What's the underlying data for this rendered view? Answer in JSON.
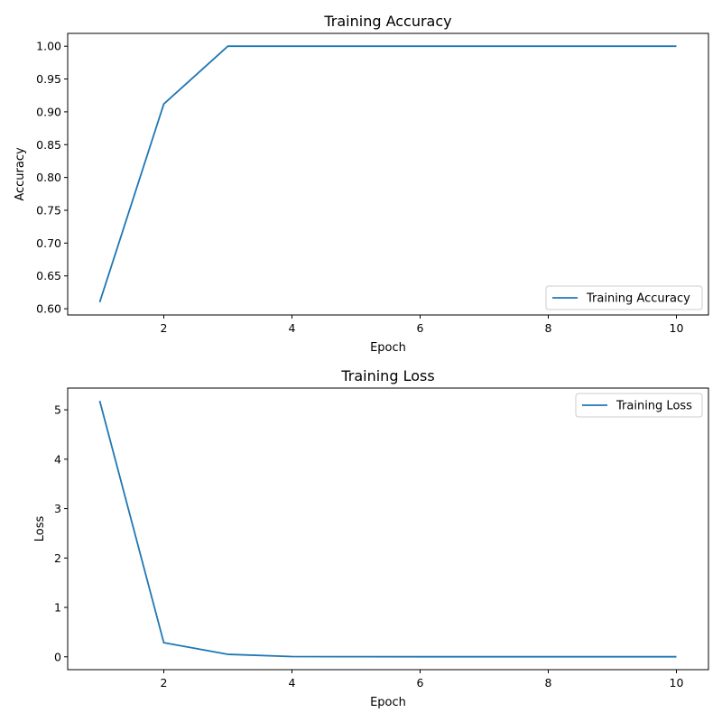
{
  "chart_data": [
    {
      "type": "line",
      "title": "Training Accuracy",
      "xlabel": "Epoch",
      "ylabel": "Accuracy",
      "xlim": [
        0.5,
        10.5
      ],
      "ylim": [
        0.5905,
        1.0195
      ],
      "xticks": [
        2,
        4,
        6,
        8,
        10
      ],
      "xtick_labels": [
        "2",
        "4",
        "6",
        "8",
        "10"
      ],
      "yticks": [
        0.6,
        0.65,
        0.7,
        0.75,
        0.8,
        0.85,
        0.9,
        0.95,
        1.0
      ],
      "ytick_labels": [
        "0.60",
        "0.65",
        "0.70",
        "0.75",
        "0.80",
        "0.85",
        "0.90",
        "0.95",
        "1.00"
      ],
      "grid": false,
      "legend_position": "bottom-right",
      "color": "#1f77b4",
      "series": [
        {
          "name": "Training Accuracy",
          "x": [
            1,
            2,
            3,
            4,
            5,
            6,
            7,
            8,
            9,
            10
          ],
          "values": [
            0.61,
            0.912,
            1.0,
            1.0,
            1.0,
            1.0,
            1.0,
            1.0,
            1.0,
            1.0
          ]
        }
      ]
    },
    {
      "type": "line",
      "title": "Training Loss",
      "xlabel": "Epoch",
      "ylabel": "Loss",
      "xlim": [
        0.5,
        10.5
      ],
      "ylim": [
        -0.26,
        5.44
      ],
      "xticks": [
        2,
        4,
        6,
        8,
        10
      ],
      "xtick_labels": [
        "2",
        "4",
        "6",
        "8",
        "10"
      ],
      "yticks": [
        0,
        1,
        2,
        3,
        4,
        5
      ],
      "ytick_labels": [
        "0",
        "1",
        "2",
        "3",
        "4",
        "5"
      ],
      "grid": false,
      "legend_position": "top-right",
      "color": "#1f77b4",
      "series": [
        {
          "name": "Training Loss",
          "x": [
            1,
            2,
            3,
            4,
            5,
            6,
            7,
            8,
            9,
            10
          ],
          "values": [
            5.18,
            0.285,
            0.05,
            0.005,
            0.002,
            0.001,
            0.001,
            0.001,
            0.001,
            0.001
          ]
        }
      ]
    }
  ]
}
